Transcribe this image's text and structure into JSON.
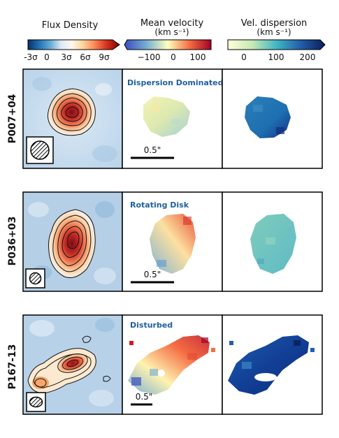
{
  "colorbars": {
    "flux": {
      "title": "Flux Density",
      "ticks": [
        "-3σ",
        "0",
        "3σ",
        "6σ",
        "9σ"
      ],
      "colormap": [
        "#08306b",
        "#2171b5",
        "#6baed6",
        "#c6dbef",
        "#f7fbff",
        "#fee8c8",
        "#fdbb84",
        "#ef6548",
        "#d7301f",
        "#7f0000"
      ]
    },
    "velocity": {
      "title": "Mean velocity",
      "unit": "(km s⁻¹)",
      "ticks": [
        "−100",
        "0",
        "100"
      ],
      "colormap": [
        "#2c7bb6",
        "#abd9e9",
        "#ffffbf",
        "#fdae61",
        "#d7191c"
      ]
    },
    "dispersion": {
      "title": "Vel. dispersion",
      "unit": "(km s⁻¹)",
      "ticks": [
        "0",
        "100",
        "200"
      ],
      "colormap": [
        "#ffffcc",
        "#c7e9b4",
        "#7fcdbb",
        "#41b6c4",
        "#1d91c0",
        "#225ea8",
        "#0c2c84"
      ]
    }
  },
  "rows": [
    {
      "label": "P007+04",
      "annotation": "Dispersion Dominated",
      "scalebar": "0.5\""
    },
    {
      "label": "P036+03",
      "annotation": "Rotating Disk",
      "scalebar": "0.5\""
    },
    {
      "label": "P167-13",
      "annotation": "Disturbed",
      "scalebar": "0.5\""
    }
  ],
  "colors": {
    "annotation": "#1f5fa0",
    "frame": "#000000"
  }
}
